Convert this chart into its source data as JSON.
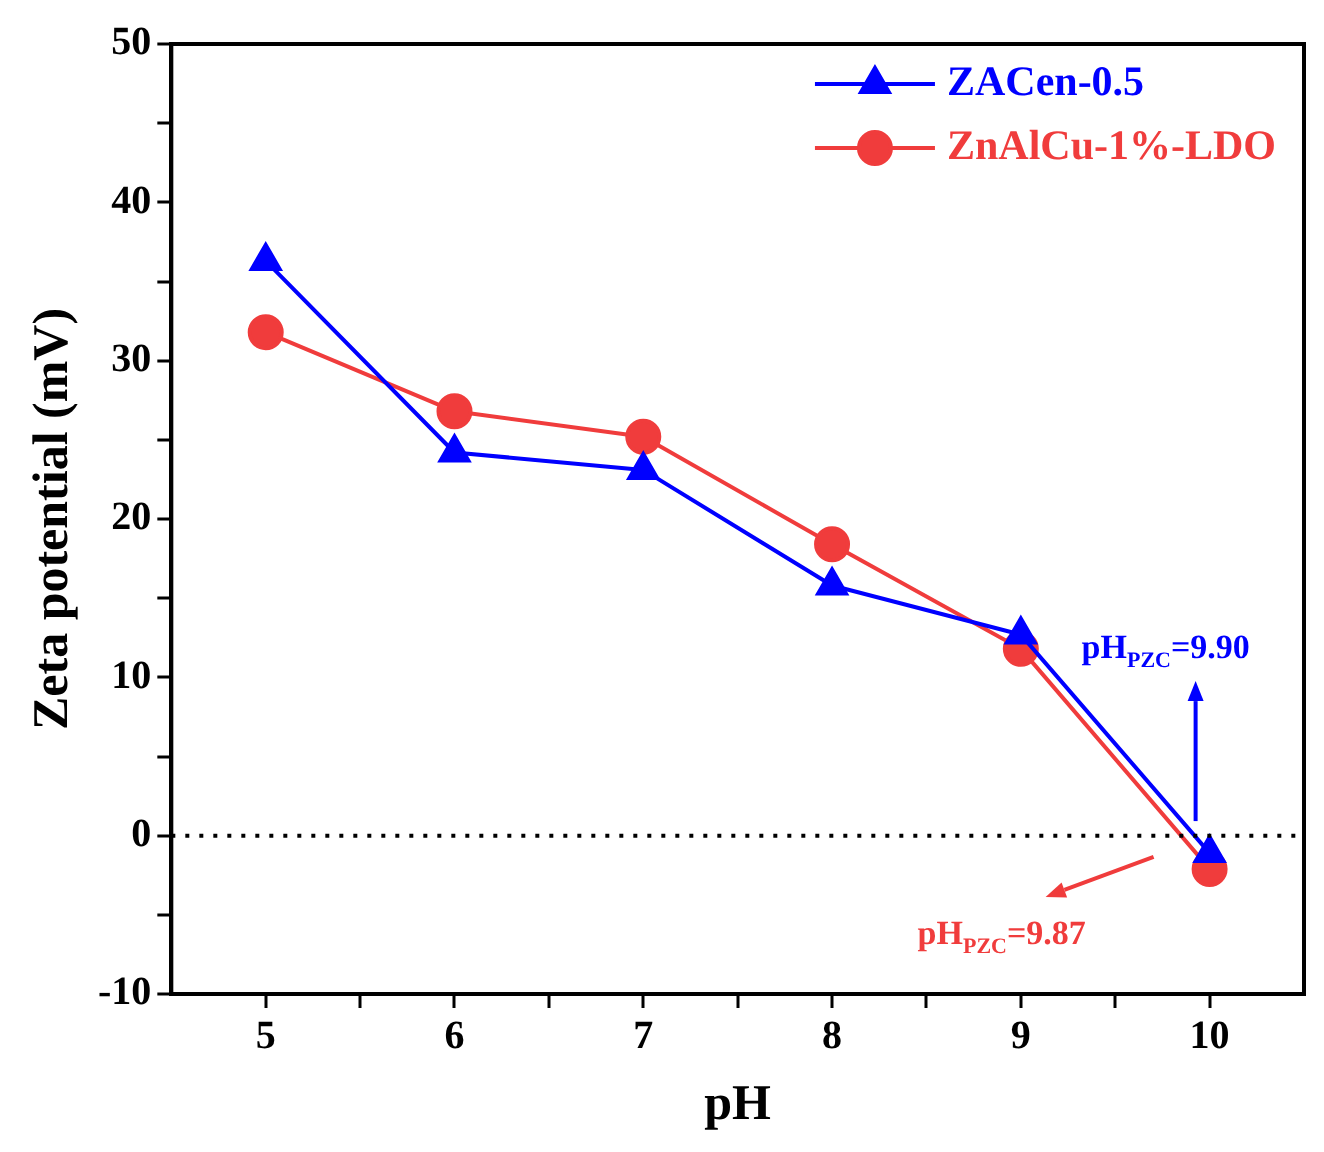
{
  "chart_data": {
    "type": "line",
    "xlabel": "pH",
    "ylabel": "Zeta potential (mV)",
    "x": [
      5,
      6,
      7,
      8,
      9,
      10
    ],
    "series": [
      {
        "name": "ZACen-0.5",
        "color": "#0000ff",
        "marker": "triangle",
        "values": [
          36.3,
          24.2,
          23.1,
          15.8,
          12.7,
          -1.1
        ]
      },
      {
        "name": "ZnAlCu-1%-LDO",
        "color": "#f03c3c",
        "marker": "circle",
        "values": [
          31.8,
          26.8,
          25.2,
          18.4,
          11.8,
          -2.1
        ]
      }
    ],
    "xlim": [
      4.5,
      10.5
    ],
    "xticks": [
      5,
      {
        "value": 5.5,
        "label": null
      },
      6,
      {
        "value": 6.5,
        "label": null
      },
      7,
      {
        "value": 7.5,
        "label": null
      },
      8,
      {
        "value": 8.5,
        "label": null
      },
      9,
      {
        "value": 9.5,
        "label": null
      },
      10
    ],
    "ylim": [
      -10,
      50
    ],
    "yticks": [
      -10,
      {
        "value": -5,
        "label": null
      },
      0,
      {
        "value": 5,
        "label": null
      },
      10,
      {
        "value": 15,
        "label": null
      },
      20,
      {
        "value": 25,
        "label": null
      },
      30,
      {
        "value": 35,
        "label": null
      },
      40,
      {
        "value": 45,
        "label": null
      },
      50
    ],
    "ref_lines": [
      {
        "axis": "y",
        "value": 0,
        "color": "#000000",
        "line_style": "dotted"
      }
    ],
    "annotations": [
      "pH$_{PZC}$=9.90",
      "pH$_{PZC}$=9.87"
    ],
    "grid": false,
    "legend": "top right",
    "line_style": "solid"
  }
}
